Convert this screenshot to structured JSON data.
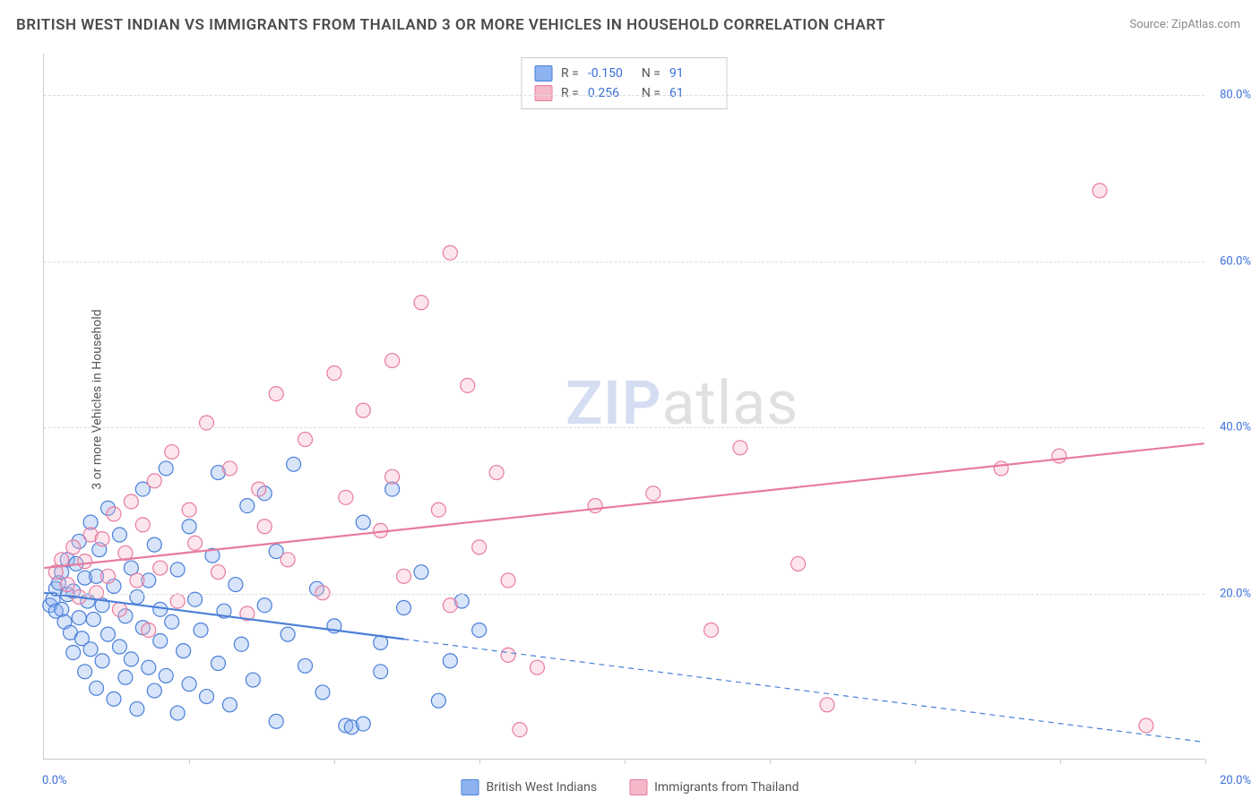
{
  "title": "BRITISH WEST INDIAN VS IMMIGRANTS FROM THAILAND 3 OR MORE VEHICLES IN HOUSEHOLD CORRELATION CHART",
  "source": "Source: ZipAtlas.com",
  "y_axis_label": "3 or more Vehicles in Household",
  "watermark": {
    "part1": "ZIP",
    "part2": "atlas"
  },
  "chart": {
    "type": "scatter",
    "xlim": [
      0,
      20
    ],
    "ylim": [
      0,
      85
    ],
    "x_tick_left": "0.0%",
    "x_tick_right": "20.0%",
    "x_minor_ticks": [
      2.5,
      5,
      7.5,
      10,
      12.5,
      15,
      17.5,
      20
    ],
    "y_ticks": [
      {
        "v": 20,
        "label": "20.0%"
      },
      {
        "v": 40,
        "label": "40.0%"
      },
      {
        "v": 60,
        "label": "60.0%"
      },
      {
        "v": 80,
        "label": "80.0%"
      }
    ],
    "marker_radius": 8,
    "marker_stroke_width": 1.2,
    "marker_fill_opacity": 0.35,
    "trend_line_width": 2.2,
    "background_color": "#ffffff",
    "grid_color": "#dddddd",
    "axis_color": "#cccccc",
    "series": [
      {
        "name": "British West Indians",
        "color_fill": "#8cb3f0",
        "color_stroke": "#4a7fd8",
        "R": "-0.150",
        "N": "91",
        "trend": {
          "x1": 0,
          "y1": 20,
          "x2": 20,
          "y2": 2,
          "solid_until_x": 6.2
        },
        "points": [
          [
            0.1,
            18.5
          ],
          [
            0.15,
            19.2
          ],
          [
            0.2,
            20.5
          ],
          [
            0.2,
            17.8
          ],
          [
            0.25,
            21.2
          ],
          [
            0.3,
            18.0
          ],
          [
            0.3,
            22.5
          ],
          [
            0.35,
            16.5
          ],
          [
            0.4,
            19.8
          ],
          [
            0.4,
            24.0
          ],
          [
            0.45,
            15.2
          ],
          [
            0.5,
            20.2
          ],
          [
            0.5,
            12.8
          ],
          [
            0.55,
            23.5
          ],
          [
            0.6,
            17.0
          ],
          [
            0.6,
            26.2
          ],
          [
            0.65,
            14.5
          ],
          [
            0.7,
            21.8
          ],
          [
            0.7,
            10.5
          ],
          [
            0.75,
            19.0
          ],
          [
            0.8,
            28.5
          ],
          [
            0.8,
            13.2
          ],
          [
            0.85,
            16.8
          ],
          [
            0.9,
            22.0
          ],
          [
            0.9,
            8.5
          ],
          [
            0.95,
            25.2
          ],
          [
            1.0,
            18.5
          ],
          [
            1.0,
            11.8
          ],
          [
            1.1,
            15.0
          ],
          [
            1.1,
            30.2
          ],
          [
            1.2,
            20.8
          ],
          [
            1.2,
            7.2
          ],
          [
            1.3,
            13.5
          ],
          [
            1.3,
            27.0
          ],
          [
            1.4,
            17.2
          ],
          [
            1.4,
            9.8
          ],
          [
            1.5,
            23.0
          ],
          [
            1.5,
            12.0
          ],
          [
            1.6,
            19.5
          ],
          [
            1.6,
            6.0
          ],
          [
            1.7,
            15.8
          ],
          [
            1.7,
            32.5
          ],
          [
            1.8,
            11.0
          ],
          [
            1.8,
            21.5
          ],
          [
            1.9,
            8.2
          ],
          [
            1.9,
            25.8
          ],
          [
            2.0,
            14.2
          ],
          [
            2.0,
            18.0
          ],
          [
            2.1,
            35.0
          ],
          [
            2.1,
            10.0
          ],
          [
            2.2,
            16.5
          ],
          [
            2.3,
            22.8
          ],
          [
            2.3,
            5.5
          ],
          [
            2.4,
            13.0
          ],
          [
            2.5,
            28.0
          ],
          [
            2.5,
            9.0
          ],
          [
            2.6,
            19.2
          ],
          [
            2.7,
            15.5
          ],
          [
            2.8,
            7.5
          ],
          [
            2.9,
            24.5
          ],
          [
            3.0,
            11.5
          ],
          [
            3.0,
            34.5
          ],
          [
            3.1,
            17.8
          ],
          [
            3.2,
            6.5
          ],
          [
            3.3,
            21.0
          ],
          [
            3.4,
            13.8
          ],
          [
            3.5,
            30.5
          ],
          [
            3.6,
            9.5
          ],
          [
            3.8,
            32.0
          ],
          [
            3.8,
            18.5
          ],
          [
            4.0,
            25.0
          ],
          [
            4.0,
            4.5
          ],
          [
            4.2,
            15.0
          ],
          [
            4.3,
            35.5
          ],
          [
            4.5,
            11.2
          ],
          [
            4.7,
            20.5
          ],
          [
            4.8,
            8.0
          ],
          [
            5.0,
            16.0
          ],
          [
            5.2,
            4.0
          ],
          [
            5.3,
            3.8
          ],
          [
            5.5,
            28.5
          ],
          [
            5.5,
            4.2
          ],
          [
            5.8,
            10.5
          ],
          [
            5.8,
            14.0
          ],
          [
            6.0,
            32.5
          ],
          [
            6.2,
            18.2
          ],
          [
            6.5,
            22.5
          ],
          [
            6.8,
            7.0
          ],
          [
            7.0,
            11.8
          ],
          [
            7.2,
            19.0
          ],
          [
            7.5,
            15.5
          ]
        ]
      },
      {
        "name": "Immigrants from Thailand",
        "color_fill": "#f5b8c8",
        "color_stroke": "#e87ba0",
        "R": "0.256",
        "N": "61",
        "trend": {
          "x1": 0,
          "y1": 23,
          "x2": 20,
          "y2": 38,
          "solid_until_x": 20
        },
        "points": [
          [
            0.2,
            22.5
          ],
          [
            0.3,
            24.0
          ],
          [
            0.4,
            21.0
          ],
          [
            0.5,
            25.5
          ],
          [
            0.6,
            19.5
          ],
          [
            0.7,
            23.8
          ],
          [
            0.8,
            27.0
          ],
          [
            0.9,
            20.0
          ],
          [
            1.0,
            26.5
          ],
          [
            1.1,
            22.0
          ],
          [
            1.2,
            29.5
          ],
          [
            1.3,
            18.0
          ],
          [
            1.4,
            24.8
          ],
          [
            1.5,
            31.0
          ],
          [
            1.6,
            21.5
          ],
          [
            1.7,
            28.2
          ],
          [
            1.8,
            15.5
          ],
          [
            1.9,
            33.5
          ],
          [
            2.0,
            23.0
          ],
          [
            2.2,
            37.0
          ],
          [
            2.3,
            19.0
          ],
          [
            2.5,
            30.0
          ],
          [
            2.6,
            26.0
          ],
          [
            2.8,
            40.5
          ],
          [
            3.0,
            22.5
          ],
          [
            3.2,
            35.0
          ],
          [
            3.5,
            17.5
          ],
          [
            3.7,
            32.5
          ],
          [
            3.8,
            28.0
          ],
          [
            4.0,
            44.0
          ],
          [
            4.2,
            24.0
          ],
          [
            4.5,
            38.5
          ],
          [
            4.8,
            20.0
          ],
          [
            5.0,
            46.5
          ],
          [
            5.2,
            31.5
          ],
          [
            5.5,
            42.0
          ],
          [
            5.8,
            27.5
          ],
          [
            6.0,
            34.0
          ],
          [
            6.0,
            48.0
          ],
          [
            6.2,
            22.0
          ],
          [
            6.5,
            55.0
          ],
          [
            6.8,
            30.0
          ],
          [
            7.0,
            61.0
          ],
          [
            7.0,
            18.5
          ],
          [
            7.3,
            45.0
          ],
          [
            7.5,
            25.5
          ],
          [
            7.8,
            34.5
          ],
          [
            8.0,
            21.5
          ],
          [
            8.0,
            12.5
          ],
          [
            8.2,
            3.5
          ],
          [
            8.5,
            11.0
          ],
          [
            9.5,
            30.5
          ],
          [
            10.5,
            32.0
          ],
          [
            11.5,
            15.5
          ],
          [
            12.0,
            37.5
          ],
          [
            13.0,
            23.5
          ],
          [
            13.5,
            6.5
          ],
          [
            16.5,
            35.0
          ],
          [
            17.5,
            36.5
          ],
          [
            18.2,
            68.5
          ],
          [
            19.0,
            4.0
          ]
        ]
      }
    ]
  },
  "legend": {
    "R_label": "R =",
    "N_label": "N ="
  }
}
